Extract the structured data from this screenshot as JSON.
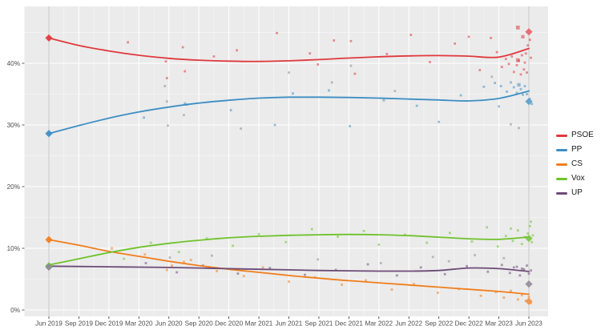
{
  "colors": {
    "panel_background": "#ebebeb",
    "grid_major": "#ffffff",
    "grid_minor": "#f5f5f5",
    "election_vline": "#c6c6c6",
    "axis_text": "#4d4d4d",
    "tick_mark": "#333333",
    "other_points": "#8c8c8c"
  },
  "chart_data": {
    "type": "line",
    "title": "",
    "xlabel": "",
    "ylabel": "",
    "grid": true,
    "legend_position": "right",
    "x_unit": "months since Jun 2019",
    "x_range": [
      0,
      48
    ],
    "ylim": [
      0,
      49
    ],
    "x_tick_months": [
      0,
      3,
      6,
      9,
      12,
      15,
      18,
      21,
      24,
      27,
      30,
      33,
      36,
      39,
      42,
      45,
      48
    ],
    "x_ticks": [
      "Jun 2019",
      "Sep 2019",
      "Dec 2019",
      "Mar 2020",
      "Jun 2020",
      "Sep 2020",
      "Dec 2020",
      "Mar 2021",
      "Jun 2021",
      "Sep 2021",
      "Dec 2021",
      "Mar 2022",
      "Jun 2022",
      "Sep 2022",
      "Dec 2022",
      "Mar 2023",
      "Jun 2023"
    ],
    "y_tick_values": [
      0,
      10,
      20,
      30,
      40
    ],
    "y_ticks": [
      "0%",
      "10%",
      "20%",
      "30%",
      "40%"
    ],
    "trend_months": [
      0,
      3,
      6,
      9,
      12,
      15,
      18,
      21,
      24,
      27,
      30,
      33,
      36,
      39,
      42,
      45,
      48
    ],
    "series": [
      {
        "name": "PSOE",
        "color": "#e0393e",
        "trend": [
          44.1,
          42.9,
          42.0,
          41.3,
          40.8,
          40.5,
          40.35,
          40.3,
          40.4,
          40.6,
          40.85,
          41.05,
          41.2,
          41.25,
          41.15,
          41.0,
          42.4
        ],
        "points": [
          [
            7.9,
            43.4
          ],
          [
            11.7,
            40.3
          ],
          [
            11.8,
            37.6
          ],
          [
            13.4,
            42.6
          ],
          [
            13.6,
            38.7
          ],
          [
            16.5,
            41.1
          ],
          [
            18.8,
            42.1
          ],
          [
            22.8,
            44.9
          ],
          [
            26.1,
            41.6
          ],
          [
            26.9,
            39.8
          ],
          [
            28.5,
            43.7
          ],
          [
            30.2,
            43.6
          ],
          [
            30.6,
            38.3
          ],
          [
            33.8,
            41.5
          ],
          [
            36.2,
            44.6
          ],
          [
            38.1,
            40.2
          ],
          [
            40.6,
            43.2
          ],
          [
            42.0,
            44.3
          ],
          [
            43.1,
            38.9
          ],
          [
            44.2,
            44.1
          ],
          [
            44.8,
            41.8
          ],
          [
            45.3,
            39.4
          ],
          [
            45.7,
            40.7
          ],
          [
            46.0,
            39.9
          ],
          [
            46.3,
            41.1
          ],
          [
            46.5,
            38.6
          ],
          [
            46.8,
            39.7
          ],
          [
            46.9,
            45.8,
            1.7
          ],
          [
            47.0,
            40.4
          ],
          [
            47.2,
            38.2
          ],
          [
            47.3,
            41.3
          ],
          [
            47.4,
            44.3,
            1.5
          ],
          [
            47.5,
            39.0
          ],
          [
            47.6,
            40.1
          ],
          [
            47.8,
            38.5
          ],
          [
            47.9,
            42.9
          ],
          [
            48.1,
            43.8
          ],
          [
            48.2,
            40.9
          ],
          [
            46.9,
            40.5,
            1.7
          ],
          [
            47.7,
            41.6
          ]
        ]
      },
      {
        "name": "PP",
        "color": "#3e8ec4",
        "trend": [
          28.6,
          29.9,
          31.1,
          32.1,
          32.9,
          33.55,
          34.0,
          34.35,
          34.5,
          34.5,
          34.45,
          34.35,
          34.2,
          34.05,
          33.9,
          34.3,
          35.5
        ],
        "points": [
          [
            9.5,
            31.2
          ],
          [
            13.6,
            33.5
          ],
          [
            13.8,
            33.3
          ],
          [
            18.2,
            32.4
          ],
          [
            22.6,
            30.0
          ],
          [
            24.4,
            35.1
          ],
          [
            28.0,
            35.6
          ],
          [
            30.1,
            29.8
          ],
          [
            33.5,
            34.0
          ],
          [
            36.8,
            33.1
          ],
          [
            39.0,
            30.5
          ],
          [
            41.2,
            34.8
          ],
          [
            43.5,
            36.2
          ],
          [
            44.6,
            36.8
          ],
          [
            45.0,
            33.0
          ],
          [
            45.2,
            36.3
          ],
          [
            45.8,
            35.4
          ],
          [
            46.2,
            36.9
          ],
          [
            46.5,
            36.1
          ],
          [
            46.8,
            35.2
          ],
          [
            47.0,
            36.5,
            1.5
          ],
          [
            47.2,
            35.8
          ],
          [
            47.4,
            34.9
          ],
          [
            47.6,
            36.3
          ],
          [
            47.8,
            35.0
          ],
          [
            48.1,
            34.2
          ],
          [
            48.3,
            33.4
          ]
        ]
      },
      {
        "name": "CS",
        "color": "#f07e1c",
        "trend": [
          11.4,
          10.5,
          9.5,
          8.7,
          7.9,
          7.2,
          6.6,
          6.1,
          5.6,
          5.15,
          4.75,
          4.4,
          4.05,
          3.7,
          3.35,
          3.0,
          2.55
        ],
        "points": [
          [
            6.3,
            10.0
          ],
          [
            9.6,
            9.0
          ],
          [
            11.8,
            6.5
          ],
          [
            12.3,
            7.2
          ],
          [
            13.5,
            7.8
          ],
          [
            14.2,
            8.1
          ],
          [
            16.8,
            6.3
          ],
          [
            19.5,
            5.5
          ],
          [
            21.4,
            6.9
          ],
          [
            24.0,
            4.6
          ],
          [
            26.6,
            5.3
          ],
          [
            29.3,
            4.1
          ],
          [
            31.7,
            4.8
          ],
          [
            34.3,
            3.3
          ],
          [
            36.5,
            4.2
          ],
          [
            38.9,
            2.8
          ],
          [
            41.0,
            3.4
          ],
          [
            43.2,
            2.3
          ],
          [
            44.7,
            2.9
          ],
          [
            45.5,
            2.0
          ],
          [
            46.2,
            3.1
          ],
          [
            46.9,
            1.7
          ],
          [
            47.3,
            2.4
          ],
          [
            47.7,
            1.5
          ],
          [
            48.0,
            2.1
          ],
          [
            48.2,
            1.1
          ]
        ]
      },
      {
        "name": "Vox",
        "color": "#6fc22c",
        "trend": [
          7.3,
          8.3,
          9.3,
          10.15,
          10.8,
          11.3,
          11.7,
          11.95,
          12.1,
          12.2,
          12.25,
          12.2,
          12.05,
          11.8,
          11.55,
          11.45,
          11.85
        ],
        "points": [
          [
            7.5,
            8.3
          ],
          [
            10.2,
            10.9
          ],
          [
            13.0,
            9.4
          ],
          [
            15.8,
            11.6
          ],
          [
            18.4,
            10.4
          ],
          [
            21.0,
            12.3
          ],
          [
            23.7,
            11.0
          ],
          [
            26.3,
            13.1
          ],
          [
            28.9,
            11.9
          ],
          [
            31.5,
            12.8
          ],
          [
            33.0,
            10.6
          ],
          [
            35.6,
            12.2
          ],
          [
            37.8,
            10.9
          ],
          [
            40.1,
            12.5
          ],
          [
            42.3,
            11.1
          ],
          [
            43.8,
            13.4
          ],
          [
            44.9,
            10.3
          ],
          [
            45.7,
            12.0
          ],
          [
            46.2,
            13.2
          ],
          [
            46.4,
            11.2
          ],
          [
            46.9,
            12.9
          ],
          [
            47.3,
            10.7
          ],
          [
            47.6,
            11.8
          ],
          [
            47.9,
            12.4
          ],
          [
            48.1,
            13.6
          ],
          [
            48.3,
            11.0
          ],
          [
            48.2,
            14.3
          ],
          [
            48.4,
            12.1
          ]
        ]
      },
      {
        "name": "UP",
        "color": "#6d4b77",
        "trend": [
          7.1,
          7.05,
          7.0,
          6.95,
          6.9,
          6.8,
          6.7,
          6.6,
          6.5,
          6.4,
          6.35,
          6.3,
          6.3,
          6.4,
          6.8,
          6.7,
          6.25
        ],
        "points": [
          [
            9.7,
            7.6
          ],
          [
            12.8,
            6.1
          ],
          [
            15.4,
            7.2
          ],
          [
            18.9,
            5.9
          ],
          [
            22.1,
            6.8
          ],
          [
            25.6,
            5.7
          ],
          [
            28.7,
            6.5
          ],
          [
            31.9,
            7.4
          ],
          [
            34.8,
            5.6
          ],
          [
            37.2,
            6.9
          ],
          [
            39.6,
            5.8
          ],
          [
            41.8,
            7.1
          ],
          [
            43.9,
            6.2
          ],
          [
            45.3,
            7.3
          ],
          [
            46.1,
            6.0
          ],
          [
            46.5,
            6.9
          ],
          [
            46.8,
            7.0
          ],
          [
            47.1,
            5.6
          ],
          [
            47.3,
            6.7
          ],
          [
            47.5,
            6.6
          ],
          [
            47.8,
            7.2
          ],
          [
            48.0,
            5.9
          ],
          [
            48.2,
            6.4
          ]
        ]
      }
    ],
    "other_points": [
      [
        11.6,
        36.3
      ],
      [
        11.8,
        33.8
      ],
      [
        13.5,
        31.6
      ],
      [
        11.9,
        29.9
      ],
      [
        19.2,
        29.4
      ],
      [
        24.0,
        38.5
      ],
      [
        28.3,
        36.9
      ],
      [
        30.2,
        39.6
      ],
      [
        34.6,
        35.5
      ],
      [
        44.3,
        37.8
      ],
      [
        46.2,
        30.1
      ],
      [
        47.0,
        29.5
      ],
      [
        12.1,
        8.5
      ],
      [
        16.3,
        8.8
      ],
      [
        26.9,
        8.2
      ],
      [
        33.2,
        7.6
      ],
      [
        38.4,
        8.6
      ],
      [
        40.0,
        7.9
      ],
      [
        42.6,
        8.9
      ],
      [
        45.5,
        8.4
      ]
    ],
    "elections": {
      "start": {
        "date_label": "Jun 2019",
        "month": 0,
        "results": [
          {
            "party": "PSOE",
            "pct": 44.1,
            "color": "#e0393e"
          },
          {
            "party": "PP",
            "pct": 28.6,
            "color": "#3e8ec4"
          },
          {
            "party": "CS",
            "pct": 11.4,
            "color": "#f07e1c"
          },
          {
            "party": "Vox",
            "pct": 7.15,
            "color": "#6fc22c"
          },
          {
            "party": "UP",
            "pct": 6.95,
            "color": "#8f8a96"
          }
        ]
      },
      "end": {
        "date_label": "Jun 2023",
        "month": 48,
        "results": [
          {
            "party": "PSOE",
            "pct": 45.1,
            "color": "#e8636c"
          },
          {
            "party": "PP",
            "pct": 33.8,
            "color": "#5b9fc9"
          },
          {
            "party": "Vox",
            "pct": 11.6,
            "color": "#7cc643"
          },
          {
            "party": "UP",
            "pct": 4.2,
            "color": "#938d99"
          },
          {
            "party": "CS",
            "pct": 1.4,
            "color": "#f0914a"
          }
        ]
      }
    }
  }
}
